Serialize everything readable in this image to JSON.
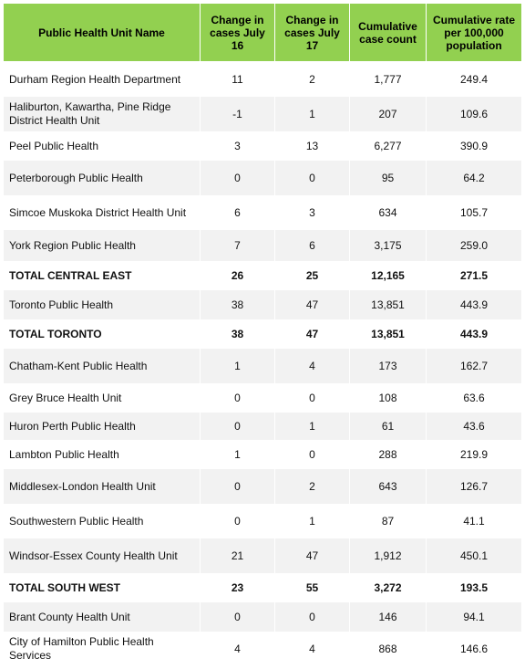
{
  "table": {
    "headers": [
      "Public Health Unit Name",
      "Change in cases July 16",
      "Change in cases July 17",
      "Cumulative case count",
      "Cumulative rate per 100,000 population"
    ],
    "rows": [
      {
        "name": "Durham Region Health Department",
        "c16": "11",
        "c17": "2",
        "cum": "1,777",
        "rate": "249.4"
      },
      {
        "name": "Haliburton, Kawartha, Pine Ridge District Health Unit",
        "c16": "-1",
        "c17": "1",
        "cum": "207",
        "rate": "109.6"
      },
      {
        "name": "Peel Public Health",
        "c16": "3",
        "c17": "13",
        "cum": "6,277",
        "rate": "390.9"
      },
      {
        "name": "Peterborough Public Health",
        "c16": "0",
        "c17": "0",
        "cum": "95",
        "rate": "64.2"
      },
      {
        "name": "Simcoe Muskoka District Health Unit",
        "c16": "6",
        "c17": "3",
        "cum": "634",
        "rate": "105.7"
      },
      {
        "name": "York Region Public Health",
        "c16": "7",
        "c17": "6",
        "cum": "3,175",
        "rate": "259.0"
      },
      {
        "name": "TOTAL CENTRAL EAST",
        "c16": "26",
        "c17": "25",
        "cum": "12,165",
        "rate": "271.5"
      },
      {
        "name": "Toronto Public Health",
        "c16": "38",
        "c17": "47",
        "cum": "13,851",
        "rate": "443.9"
      },
      {
        "name": "TOTAL TORONTO",
        "c16": "38",
        "c17": "47",
        "cum": "13,851",
        "rate": "443.9"
      },
      {
        "name": "Chatham-Kent Public Health",
        "c16": "1",
        "c17": "4",
        "cum": "173",
        "rate": "162.7"
      },
      {
        "name": "Grey Bruce Health Unit",
        "c16": "0",
        "c17": "0",
        "cum": "108",
        "rate": "63.6"
      },
      {
        "name": "Huron Perth Public Health",
        "c16": "0",
        "c17": "1",
        "cum": "61",
        "rate": "43.6"
      },
      {
        "name": "Lambton Public Health",
        "c16": "1",
        "c17": "0",
        "cum": "288",
        "rate": "219.9"
      },
      {
        "name": "Middlesex-London Health Unit",
        "c16": "0",
        "c17": "2",
        "cum": "643",
        "rate": "126.7"
      },
      {
        "name": "Southwestern Public Health",
        "c16": "0",
        "c17": "1",
        "cum": "87",
        "rate": "41.1"
      },
      {
        "name": "Windsor-Essex County Health Unit",
        "c16": "21",
        "c17": "47",
        "cum": "1,912",
        "rate": "450.1"
      },
      {
        "name": "TOTAL SOUTH WEST",
        "c16": "23",
        "c17": "55",
        "cum": "3,272",
        "rate": "193.5"
      },
      {
        "name": "Brant County Health Unit",
        "c16": "0",
        "c17": "0",
        "cum": "146",
        "rate": "94.1"
      },
      {
        "name": "City of Hamilton Public Health Services",
        "c16": "4",
        "c17": "4",
        "cum": "868",
        "rate": "146.6"
      }
    ]
  }
}
